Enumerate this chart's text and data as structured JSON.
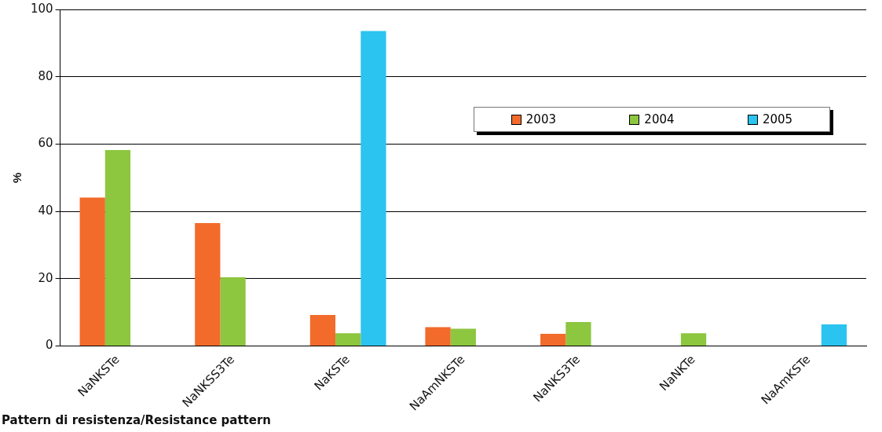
{
  "chart_data": {
    "type": "bar",
    "xlabel": "Pattern di resistenza/Resistance pattern",
    "ylabel": "%",
    "categories": [
      "NaNKSTe",
      "NaNKSS3Te",
      "NaKSTe",
      "NaAmNKSTe",
      "NaNKS3Te",
      "NaNKTe",
      "NaAmKSTe"
    ],
    "series": [
      {
        "name": "2003",
        "color": "#f26b2b",
        "values": [
          44.1,
          36.5,
          9.2,
          5.6,
          3.6,
          null,
          null
        ]
      },
      {
        "name": "2004",
        "color": "#8dc63f",
        "values": [
          58.2,
          20.4,
          3.8,
          5.1,
          7.1,
          3.8,
          null
        ]
      },
      {
        "name": "2005",
        "color": "#2bc3f0",
        "values": [
          null,
          null,
          93.6,
          null,
          null,
          null,
          6.4
        ]
      }
    ],
    "ylim": [
      0,
      100
    ],
    "yticks": [
      0,
      20,
      40,
      60,
      80,
      100
    ],
    "grid": "y",
    "legend": "top right"
  }
}
